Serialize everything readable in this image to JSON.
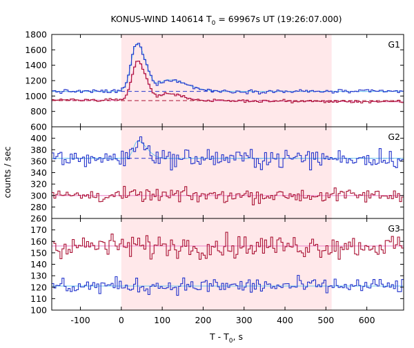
{
  "chart_data": {
    "type": "line",
    "title_main": "KONUS-WIND 140614 T",
    "title_sub": "0",
    "title_rest": " = 69967s UT (19:26:07.000)",
    "xlabel_main": "T - T",
    "xlabel_sub": "0",
    "xlabel_rest": ", s",
    "ylabel": "counts / sec",
    "xlim": [
      -170,
      690
    ],
    "x_ticks": [
      -100,
      0,
      100,
      200,
      300,
      400,
      500,
      600
    ],
    "x_tick_labels": [
      "-100",
      "0",
      "100",
      "200",
      "300",
      "400",
      "500",
      "600"
    ],
    "highlight_interval": [
      0,
      514
    ],
    "highlight_color": "#ffe8ea",
    "bin_width": 5,
    "panels": [
      {
        "label": "G1",
        "ylim": [
          600,
          1800
        ],
        "y_ticks": [
          600,
          800,
          1000,
          1200,
          1400,
          1600,
          1800
        ],
        "y_tick_labels": [
          "600",
          "800",
          "1000",
          "1200",
          "1400",
          "1600",
          "1800"
        ],
        "series": [
          {
            "color": "#2233cc",
            "fit_color": "#77ccee",
            "baseline": 1060,
            "noise": 12,
            "background_level": 1060,
            "background_style": "dashed",
            "pulses": [
              {
                "peak": 620,
                "t_peak": 38,
                "rise": 14,
                "decay": 22
              },
              {
                "peak": 150,
                "t_peak": 115,
                "rise": 20,
                "decay": 45
              }
            ]
          },
          {
            "color": "#aa1133",
            "fit_color": "#ee88cc",
            "baseline": 950,
            "slope": -0.03,
            "noise": 9,
            "background_level": 940,
            "background_style": "dashed",
            "pulses": [
              {
                "peak": 510,
                "t_peak": 40,
                "rise": 14,
                "decay": 20
              },
              {
                "peak": 90,
                "t_peak": 112,
                "rise": 18,
                "decay": 38
              }
            ]
          }
        ]
      },
      {
        "label": "G2",
        "ylim": [
          260,
          420
        ],
        "y_ticks": [
          260,
          280,
          300,
          320,
          340,
          360,
          380,
          400
        ],
        "y_tick_labels": [
          "260",
          "280",
          "300",
          "320",
          "340",
          "360",
          "380",
          "400"
        ],
        "series": [
          {
            "color": "#2233cc",
            "fit_color": "#77ccee",
            "baseline": 365,
            "noise": 8,
            "background_level": 365,
            "background_style": "dashed",
            "pulses": [
              {
                "peak": 30,
                "t_peak": 40,
                "rise": 10,
                "decay": 22
              }
            ]
          },
          {
            "color": "#aa1133",
            "fit_color": "#ee88cc",
            "baseline": 300,
            "noise": 6,
            "background_level": 300,
            "background_style": "solid",
            "pulses": []
          }
        ]
      },
      {
        "label": "G3",
        "ylim": [
          100,
          180
        ],
        "y_ticks": [
          100,
          110,
          120,
          130,
          140,
          150,
          160,
          170
        ],
        "y_tick_labels": [
          "100",
          "110",
          "120",
          "130",
          "140",
          "150",
          "160",
          "170"
        ],
        "series": [
          {
            "color": "#aa1133",
            "fit_color": "#ee88cc",
            "baseline": 156,
            "noise": 5,
            "background_level": 156,
            "background_style": "solid",
            "pulses": []
          },
          {
            "color": "#2233cc",
            "fit_color": "#77ccee",
            "baseline": 121,
            "noise": 3.5,
            "background_level": 121,
            "background_style": "solid",
            "pulses": []
          }
        ]
      }
    ]
  }
}
